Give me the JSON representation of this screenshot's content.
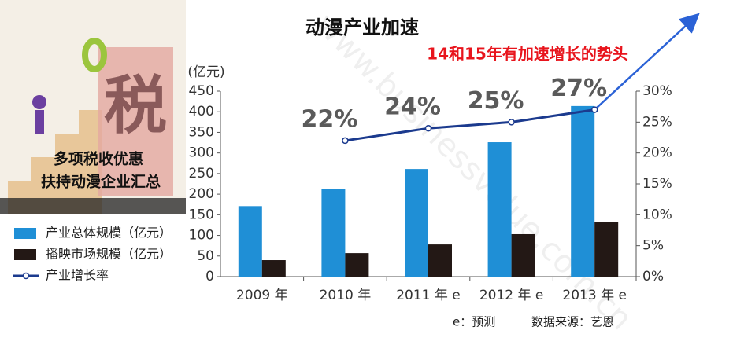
{
  "chart_data": {
    "type": "bar",
    "title": "动漫产业加速",
    "annotation": "14和15年有加速增长的势头",
    "y_axis_label": "(亿元)",
    "footnotes": [
      "e：预测",
      "数据来源：艺恩"
    ],
    "image_texts": [
      "税",
      "多项税收优惠",
      "扶持动漫企业汇总"
    ],
    "watermark": "www.businessvalue.com.cn",
    "categories": [
      "2009 年",
      "2010 年",
      "2011 年 e",
      "2012 年 e",
      "2013 年 e"
    ],
    "series": [
      {
        "name": "产业总体规模（亿元）",
        "type": "bar",
        "color": "#1f8fd6",
        "values": [
          171,
          212,
          261,
          326,
          414
        ]
      },
      {
        "name": "播映市场规模（亿元）",
        "type": "bar",
        "color": "#231815",
        "values": [
          40,
          57,
          78,
          103,
          132
        ]
      },
      {
        "name": "产业增长率",
        "type": "line",
        "axis": "y2",
        "color": "#1b3a8e",
        "values": [
          null,
          22,
          24,
          25,
          27
        ],
        "value_labels": [
          null,
          "22%",
          "24%",
          "25%",
          "27%"
        ]
      }
    ],
    "ylim": [
      0,
      450
    ],
    "yticks": [
      0,
      50,
      100,
      150,
      200,
      250,
      300,
      350,
      400,
      450
    ],
    "y2lim": [
      0,
      30
    ],
    "y2ticks": [
      {
        "value": 0,
        "label": "0%"
      },
      {
        "value": 5,
        "label": "5%"
      },
      {
        "value": 10,
        "label": "10%"
      },
      {
        "value": 15,
        "label": "15%"
      },
      {
        "value": 20,
        "label": "20%"
      },
      {
        "value": 25,
        "label": "25%"
      },
      {
        "value": 30,
        "label": "30%"
      }
    ]
  }
}
